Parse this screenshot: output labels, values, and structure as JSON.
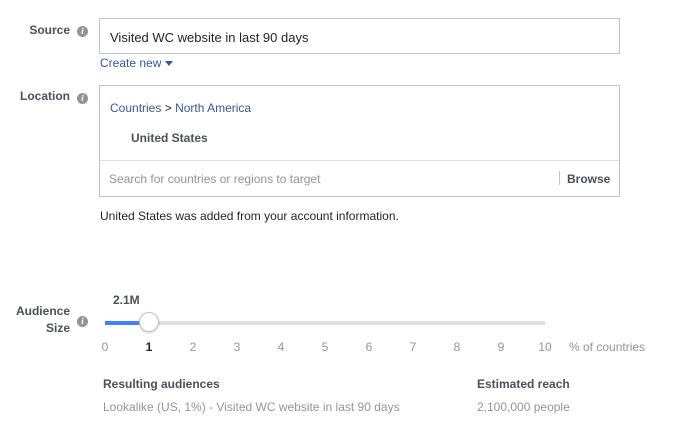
{
  "source": {
    "label": "Source",
    "value": "Visited WC website in last 90 days",
    "create_new": "Create new"
  },
  "location": {
    "label": "Location",
    "breadcrumb_root": "Countries",
    "breadcrumb_sep": ">",
    "breadcrumb_region": "North America",
    "selected": "United States",
    "search_placeholder": "Search for countries or regions to target",
    "browse": "Browse",
    "note": "United States was added from your account information."
  },
  "audience_size": {
    "label_line1": "Audience",
    "label_line2": "Size",
    "value_label": "2.1M",
    "selected_percent": 1,
    "min": 0,
    "max": 10,
    "ticks": [
      "0",
      "1",
      "2",
      "3",
      "4",
      "5",
      "6",
      "7",
      "8",
      "9",
      "10"
    ],
    "unit": "% of countries",
    "fill_color": "#4080ff"
  },
  "results": {
    "audiences_header": "Resulting audiences",
    "audience": "Lookalike (US, 1%) - Visited WC website in last 90 days",
    "reach_header": "Estimated reach",
    "reach": "2,100,000 people"
  }
}
